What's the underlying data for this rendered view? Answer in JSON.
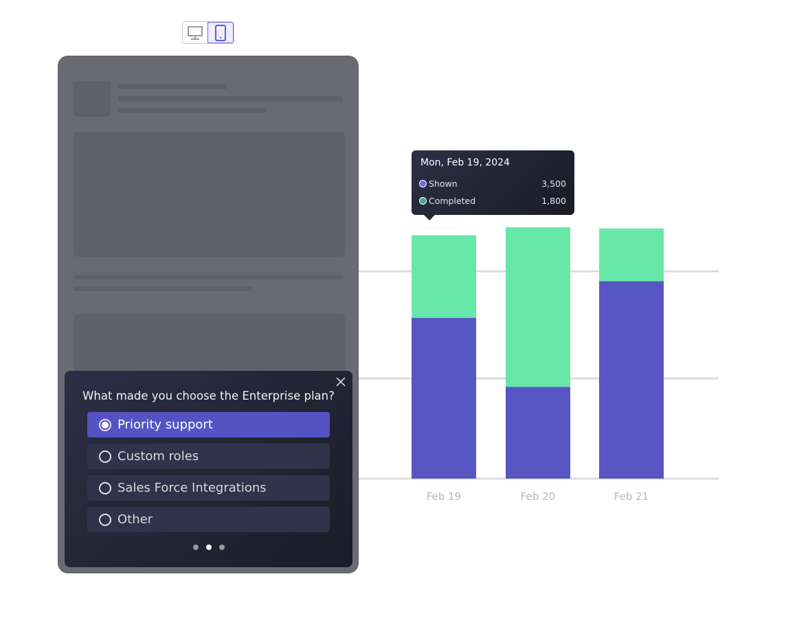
{
  "device_toggle": {
    "options": [
      {
        "icon": "desktop-icon",
        "active": false
      },
      {
        "icon": "tablet-icon",
        "active": true
      }
    ]
  },
  "survey": {
    "question": "What made you choose the Enterprise plan?",
    "options": [
      {
        "label": "Priority support",
        "selected": true
      },
      {
        "label": "Custom roles",
        "selected": false
      },
      {
        "label": "Sales Force Integrations",
        "selected": false
      },
      {
        "label": "Other",
        "selected": false
      }
    ],
    "pagination": {
      "total": 3,
      "current": 2
    }
  },
  "tooltip": {
    "date": "Mon, Feb 19, 2024",
    "rows": [
      {
        "label": "Shown",
        "value": "3,500",
        "color": "#6a6af0"
      },
      {
        "label": "Completed",
        "value": "1,800",
        "color": "#3fa89a"
      }
    ]
  },
  "colors": {
    "shown": "#5856c2",
    "completed": "#68e8a8",
    "accent": "#5553c4"
  },
  "chart_data": {
    "type": "bar",
    "stacked": true,
    "categories": [
      "Feb 19",
      "Feb 20",
      "Feb 21"
    ],
    "series": [
      {
        "name": "Shown",
        "values": [
          3500,
          2000,
          4300
        ]
      },
      {
        "name": "Completed",
        "values": [
          1800,
          3500,
          1150
        ]
      }
    ],
    "ylim": [
      0,
      5475
    ],
    "grid": true,
    "legend": "none"
  }
}
